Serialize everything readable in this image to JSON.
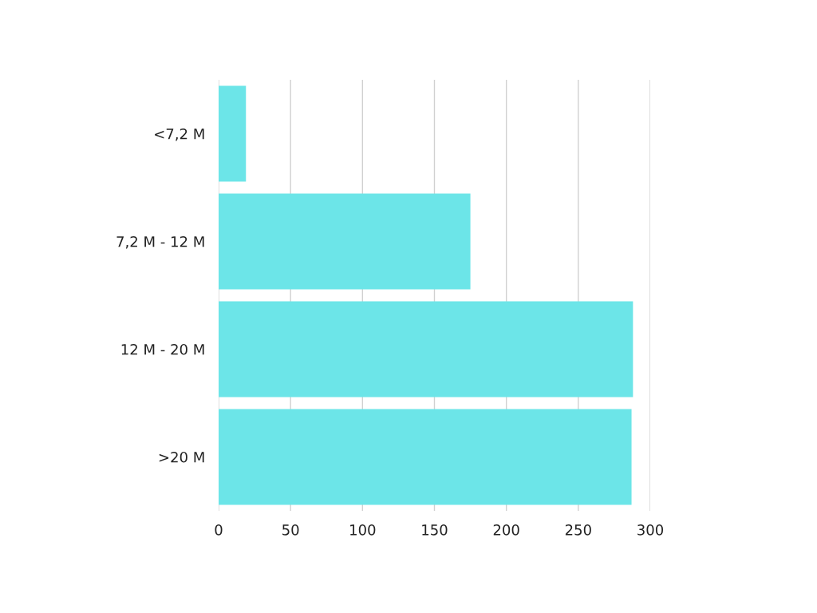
{
  "chart_data": {
    "type": "bar",
    "orientation": "horizontal",
    "categories": [
      "<7,2 M",
      "7,2 M - 12 M",
      "12 M - 20 M",
      ">20 M"
    ],
    "values": [
      19,
      175,
      288,
      287
    ],
    "color": "#6ce5e8",
    "xlim": [
      0,
      300
    ],
    "xticks": [
      0,
      50,
      100,
      150,
      200,
      250,
      300
    ],
    "grid": "x",
    "legend": false
  }
}
